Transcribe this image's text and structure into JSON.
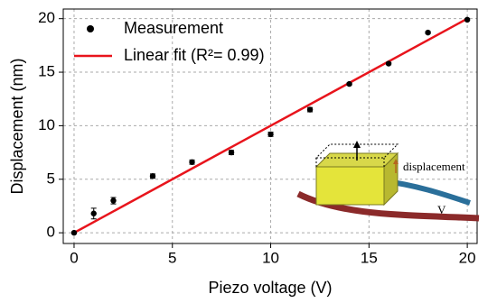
{
  "chart_data": {
    "type": "scatter",
    "x_label": "Piezo voltage (V)",
    "y_label": "Displacement (nm)",
    "xlim": [
      -0.55,
      20.5
    ],
    "ylim": [
      -1,
      20.9
    ],
    "xticks": [
      0,
      5,
      10,
      15,
      20
    ],
    "yticks": [
      0,
      5,
      10,
      15,
      20
    ],
    "grid": true,
    "legend": "upper left",
    "series": [
      {
        "name": "Measurement",
        "style": "markers",
        "color": "#000000",
        "x": [
          0,
          1,
          2,
          4,
          6,
          8,
          10,
          12,
          14,
          16,
          18,
          20
        ],
        "values": [
          0,
          1.8,
          3.0,
          5.3,
          6.6,
          7.5,
          9.2,
          11.5,
          13.9,
          15.8,
          18.7,
          19.9
        ],
        "errors": [
          0.1,
          0.5,
          0.3,
          0.2,
          0.2,
          0.2,
          0.2,
          0.2,
          0.1,
          0.1,
          0.1,
          0.1
        ]
      },
      {
        "name": "Linear fit (R²= 0.99)",
        "style": "line",
        "color": "#e8141c",
        "x": [
          0,
          20
        ],
        "values": [
          0,
          20
        ]
      }
    ],
    "annotations": [
      "displacement",
      "V"
    ]
  }
}
